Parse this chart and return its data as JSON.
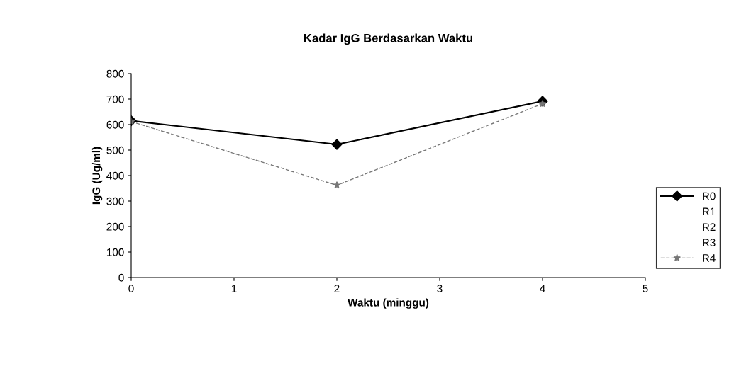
{
  "chart_data": {
    "type": "line",
    "title": "Kadar IgG Berdasarkan Waktu",
    "xlabel": "Waktu (minggu)",
    "ylabel": "IgG (Ug/ml)",
    "x": [
      0,
      2,
      4
    ],
    "xlim": [
      0,
      5
    ],
    "xticks": [
      0,
      1,
      2,
      3,
      4,
      5
    ],
    "ylim": [
      0,
      800
    ],
    "yticks": [
      0,
      100,
      200,
      300,
      400,
      500,
      600,
      700,
      800
    ],
    "grid": false,
    "legend": "right",
    "series": [
      {
        "name": "R0",
        "color": "#000000",
        "values": [
          615,
          522,
          692
        ],
        "marker": "diamond",
        "line_style": "solid"
      },
      {
        "name": "R1",
        "values": [
          null,
          null,
          null
        ]
      },
      {
        "name": "R2",
        "values": [
          null,
          null,
          null
        ]
      },
      {
        "name": "R3",
        "values": [
          null,
          null,
          null
        ]
      },
      {
        "name": "R4",
        "color": "#777777",
        "values": [
          612,
          362,
          682
        ],
        "marker": "star",
        "line_style": "dashed"
      }
    ]
  }
}
